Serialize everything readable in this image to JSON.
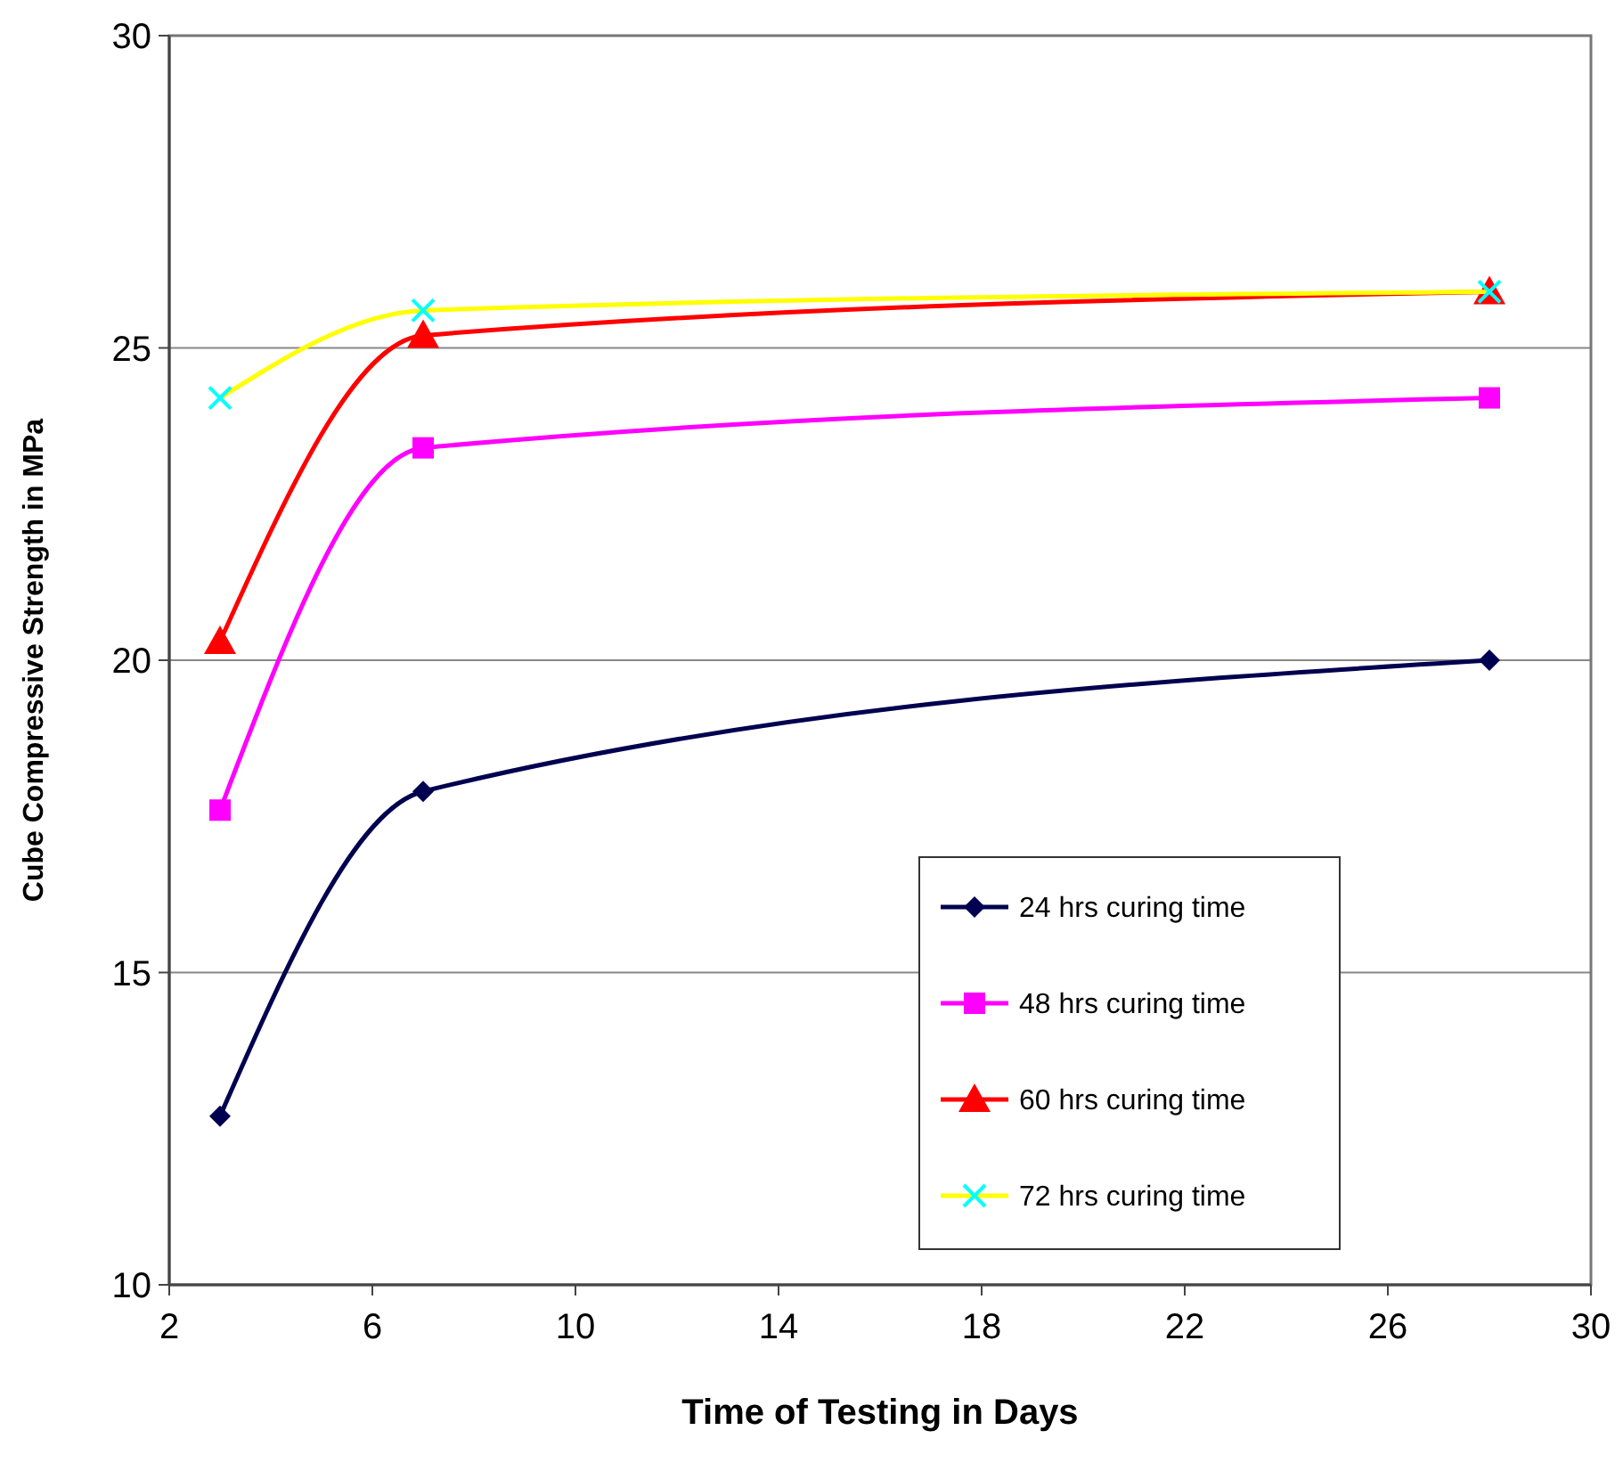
{
  "chart_data": {
    "type": "line",
    "xlabel": "Time of Testing in Days",
    "ylabel": "Cube Compressive Strength in MPa",
    "x": [
      3,
      7,
      28
    ],
    "xlim": [
      2,
      30
    ],
    "xticks": [
      2,
      6,
      10,
      14,
      18,
      22,
      26,
      30
    ],
    "ylim": [
      10,
      30
    ],
    "yticks": [
      10,
      15,
      20,
      25,
      30
    ],
    "grid": "y",
    "legend": "bottom",
    "series": [
      {
        "name": "24 hrs curing time",
        "color": "#000050",
        "marker": "diamond",
        "values": [
          12.7,
          17.9,
          20.0
        ]
      },
      {
        "name": "48 hrs curing time",
        "color": "#ff00ff",
        "marker": "square",
        "values": [
          17.6,
          23.4,
          24.2
        ]
      },
      {
        "name": "60 hrs curing time",
        "color": "#ff0000",
        "marker": "triangle",
        "values": [
          20.3,
          25.2,
          25.9
        ]
      },
      {
        "name": "72 hrs curing time",
        "color": "#ffff00",
        "colors": [
          "#00ffff",
          "#00ffff",
          "#00ffff"
        ],
        "marker": "cross",
        "values": [
          24.2,
          25.6,
          25.9
        ]
      }
    ]
  }
}
